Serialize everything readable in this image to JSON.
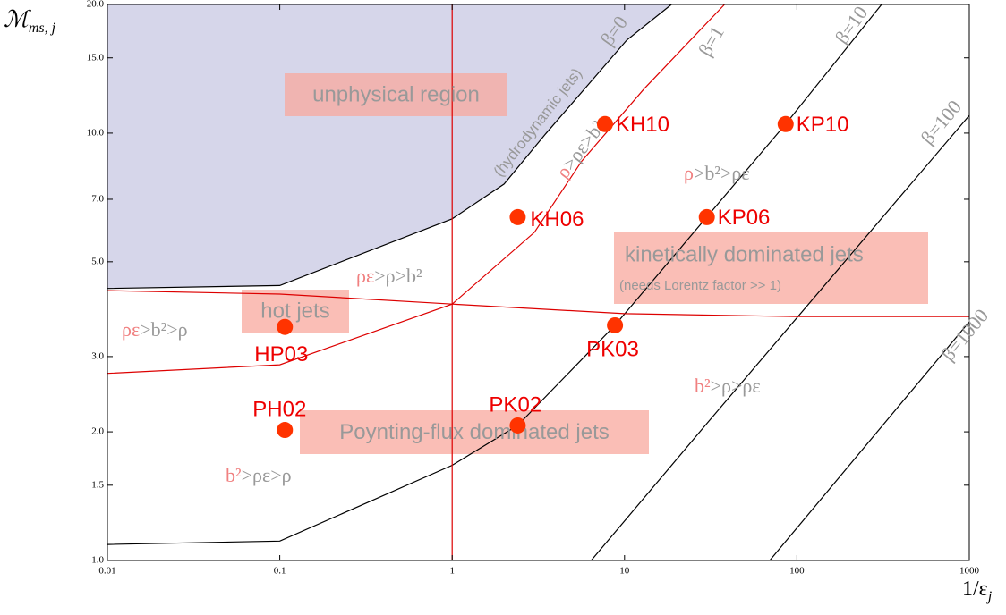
{
  "chart_data": {
    "type": "scatter",
    "x_label": "1/ε",
    "x_label_sub": "j",
    "y_label": "ℳ",
    "y_label_sub": "ms, j",
    "log_x": true,
    "log_y": true,
    "xlim": [
      0.01,
      1000
    ],
    "ylim": [
      1,
      20
    ],
    "xticks": [
      0.01,
      0.1,
      1,
      10,
      100,
      1000
    ],
    "yticks": [
      {
        "value": 1,
        "label": "1.0"
      },
      {
        "value": 1.5,
        "label": "1.5"
      },
      {
        "value": 2,
        "label": "2.0"
      },
      {
        "value": 3,
        "label": "3.0"
      },
      {
        "value": 5,
        "label": "5.0"
      },
      {
        "value": 7,
        "label": "7.0"
      },
      {
        "value": 10,
        "label": "10.0"
      },
      {
        "value": 15,
        "label": "15.0"
      },
      {
        "value": 20,
        "label": "20.0"
      }
    ],
    "point_color": "#ff3300",
    "point_label_color": "#ee0000",
    "points": [
      {
        "label": "KH10",
        "x": 7.7,
        "y": 10.5
      },
      {
        "label": "KP10",
        "x": 86,
        "y": 10.5
      },
      {
        "label": "KH06",
        "x": 2.4,
        "y": 6.36
      },
      {
        "label": "KP06",
        "x": 30,
        "y": 6.36
      },
      {
        "label": "HP03",
        "x": 0.107,
        "y": 3.52
      },
      {
        "label": "PK03",
        "x": 8.8,
        "y": 3.55
      },
      {
        "label": "PH02",
        "x": 0.107,
        "y": 2.02
      },
      {
        "label": "PK02",
        "x": 2.4,
        "y": 2.07
      }
    ],
    "curves": [
      {
        "name": "β=0",
        "color": "#000000",
        "shade": "#d6d6ea",
        "x": [
          0.01,
          0.1,
          1,
          2,
          3.5,
          10.3,
          18.7
        ],
        "y": [
          4.33,
          4.4,
          6.3,
          7.6,
          9.98,
          16.5,
          20
        ]
      },
      {
        "name": "β=1",
        "color": "#dd0000",
        "x": [
          0.01,
          0.1,
          1,
          3,
          5.65,
          13,
          38
        ],
        "y": [
          2.74,
          2.87,
          3.98,
          5.86,
          8.6,
          12.7,
          20
        ]
      },
      {
        "name": "β=10",
        "color": "#000000",
        "x": [
          0.01,
          0.1,
          1,
          2.4,
          8.8,
          86,
          310
        ],
        "y": [
          1.09,
          1.11,
          1.67,
          2.07,
          3.55,
          10.5,
          20
        ]
      },
      {
        "name": "β=100",
        "color": "#000000",
        "x": [
          6.4,
          30,
          1000
        ],
        "y": [
          1,
          2.09,
          11
        ]
      },
      {
        "name": "β=1000",
        "color": "#000000",
        "x": [
          69.5,
          1000
        ],
        "y": [
          1,
          3.62
        ]
      },
      {
        "color": "#dd0000",
        "x": [
          0.01,
          0.1,
          1,
          10,
          100,
          1000
        ],
        "y": [
          4.28,
          4.2,
          3.98,
          3.78,
          3.72,
          3.72
        ]
      }
    ],
    "vline_x": 1,
    "vline_color": "#dd0000",
    "boundary_note": "(hydrodynamic jets)",
    "regions": [
      {
        "lead": "ρ",
        "rest": ">ρε>b²"
      },
      {
        "lead": "ρ",
        "rest": ">b²>ρε"
      },
      {
        "lead": "ρε",
        "rest": ">ρ>b²"
      },
      {
        "lead": "ρε",
        "rest": ">b²>ρ"
      },
      {
        "lead": "b²",
        "rest": ">ρ>ρε"
      },
      {
        "lead": "b²",
        "rest": ">ρε>ρ"
      }
    ],
    "boxes": [
      {
        "text": "unphysical region"
      },
      {
        "text": "hot jets"
      },
      {
        "text": "kinetically dominated jets",
        "note": "(needs Lorentz factor >> 1)"
      },
      {
        "text": "Poynting-flux dominated jets"
      }
    ]
  }
}
